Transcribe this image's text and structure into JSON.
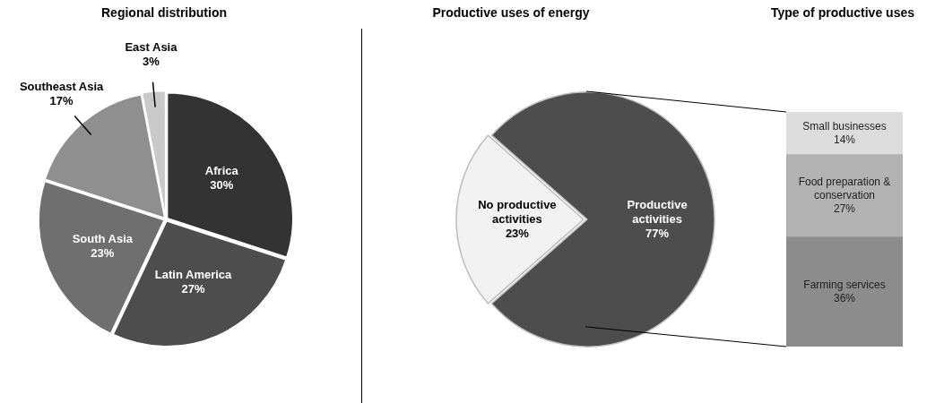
{
  "chart_data": [
    {
      "type": "pie",
      "title": "Regional distribution",
      "categories": [
        "Africa",
        "Latin America",
        "South Asia",
        "Southeast Asia",
        "East Asia"
      ],
      "values": [
        30,
        27,
        23,
        17,
        3
      ],
      "value_labels": [
        "30%",
        "27%",
        "23%",
        "17%",
        "3%"
      ],
      "colors": [
        "#333333",
        "#4d4d4d",
        "#6f6f6f",
        "#8f8f8f",
        "#c9c9c9"
      ]
    },
    {
      "type": "pie",
      "title": "Productive uses of energy",
      "categories": [
        "No productive activities",
        "Productive activities"
      ],
      "values": [
        23,
        77
      ],
      "value_labels": [
        "23%",
        "77%"
      ],
      "colors": [
        "#f2f2f2",
        "#4d4d4d"
      ]
    },
    {
      "type": "bar",
      "title": "Type of productive uses",
      "stacked": true,
      "categories": [
        null
      ],
      "series": [
        {
          "name": "Farming services",
          "color": "#8c8c8c",
          "values": [
            36
          ],
          "value_labels": [
            "36%"
          ]
        },
        {
          "name": "Food preparation & conservation",
          "color": "#b2b2b2",
          "values": [
            27
          ],
          "value_labels": [
            "27%"
          ]
        },
        {
          "name": "Small businesses",
          "color": "#dcdcdc",
          "values": [
            14
          ],
          "value_labels": [
            "14%"
          ]
        }
      ]
    }
  ]
}
